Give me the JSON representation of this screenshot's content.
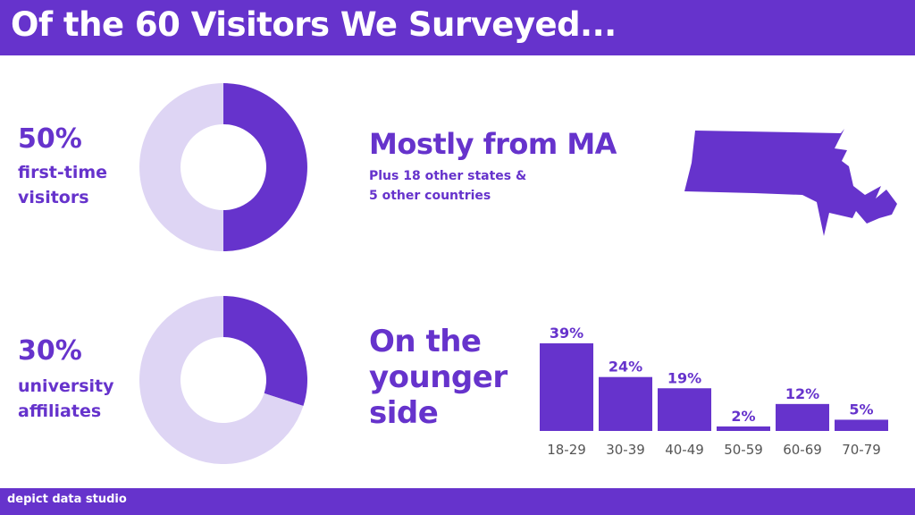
{
  "header": {
    "title": "Of the 60 Visitors We Surveyed..."
  },
  "footer": {
    "brand": "depict data studio"
  },
  "colors": {
    "accent": "#6633cc",
    "light": "#ded5f4",
    "background": "#ffffff"
  },
  "stats": {
    "first_time": {
      "percent_label": "50%",
      "line1": "first-time",
      "line2": "visitors",
      "value": 50
    },
    "university": {
      "percent_label": "30%",
      "line1": "university",
      "line2": "affiliates",
      "value": 30
    }
  },
  "origin": {
    "headline": "Mostly from MA",
    "sub1": "Plus 18 other states &",
    "sub2": "5 other countries",
    "map_icon": "massachusetts-state-shape"
  },
  "age": {
    "line1": "On the",
    "line2": "younger",
    "line3": "side"
  },
  "chart_data": [
    {
      "type": "pie",
      "style": "donut",
      "labels": [
        "first-time visitors",
        ""
      ],
      "values": [
        50,
        50
      ]
    },
    {
      "type": "pie",
      "style": "donut",
      "labels": [
        "university affiliates",
        ""
      ],
      "values": [
        30,
        70
      ]
    },
    {
      "type": "bar",
      "categories": [
        "18-29",
        "30-39",
        "40-49",
        "50-59",
        "60-69",
        "70-79"
      ],
      "values": [
        39,
        24,
        19,
        2,
        12,
        5
      ],
      "data_labels": [
        "39%",
        "24%",
        "19%",
        "2%",
        "12%",
        "5%"
      ],
      "ylim": [
        0,
        39
      ],
      "grid": false
    }
  ]
}
